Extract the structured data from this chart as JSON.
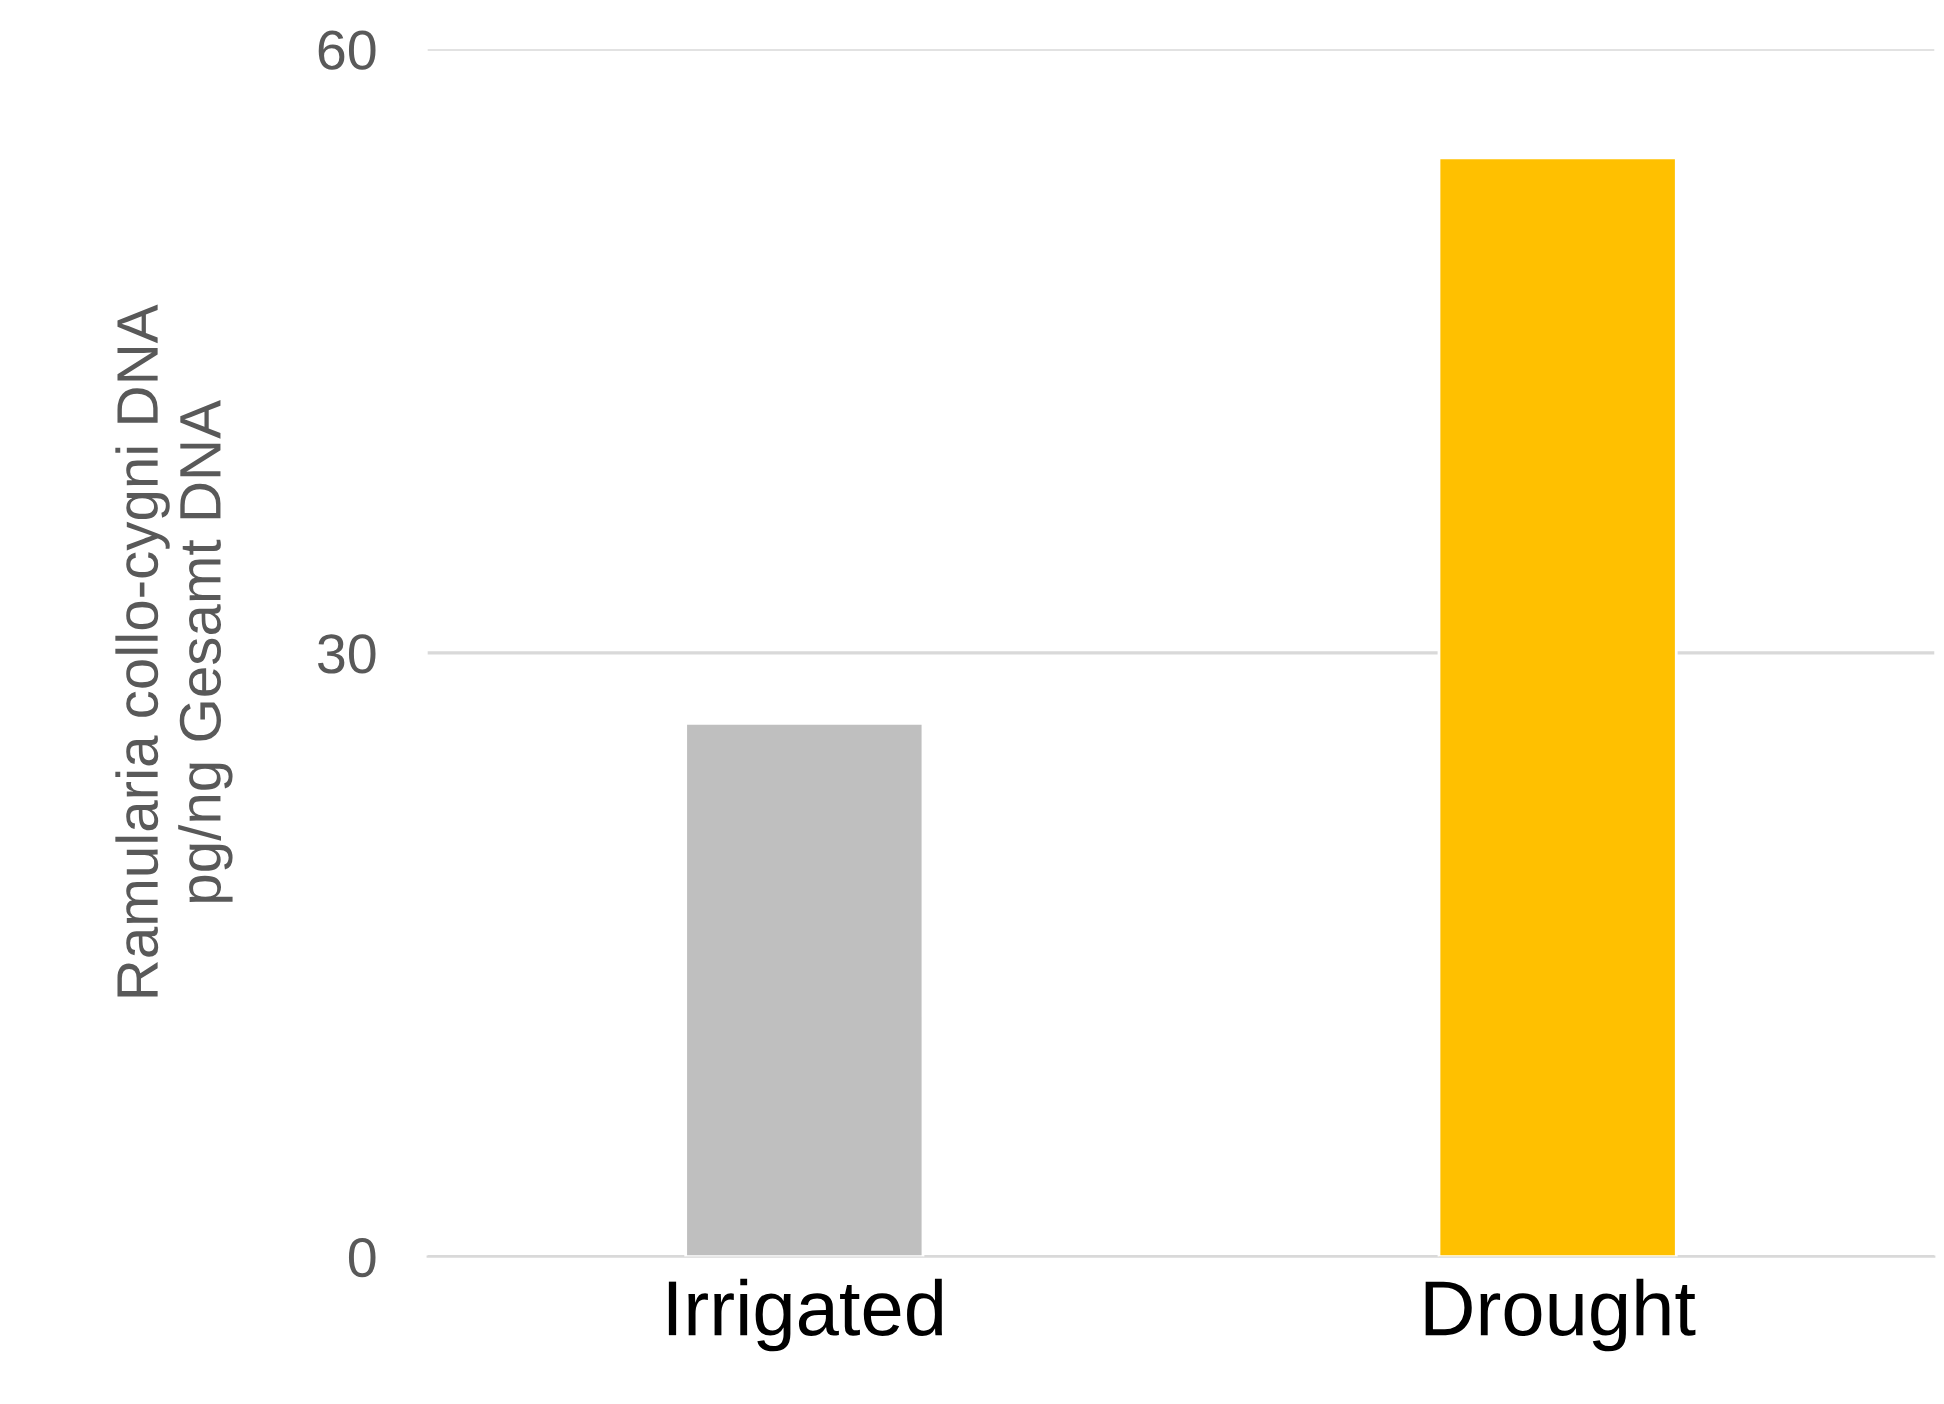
{
  "chart_data": {
    "type": "bar",
    "categories": [
      "Irrigated",
      "Drought"
    ],
    "values": [
      26.5,
      54.6
    ],
    "colors": [
      "#bfbfbf",
      "#ffc000"
    ],
    "ylabel": "Ramularia collo-cygni DNA\npg/ng Gesamt DNA",
    "ylim": [
      0,
      60
    ],
    "yticks": [
      0,
      30,
      60
    ],
    "grid": "y"
  }
}
